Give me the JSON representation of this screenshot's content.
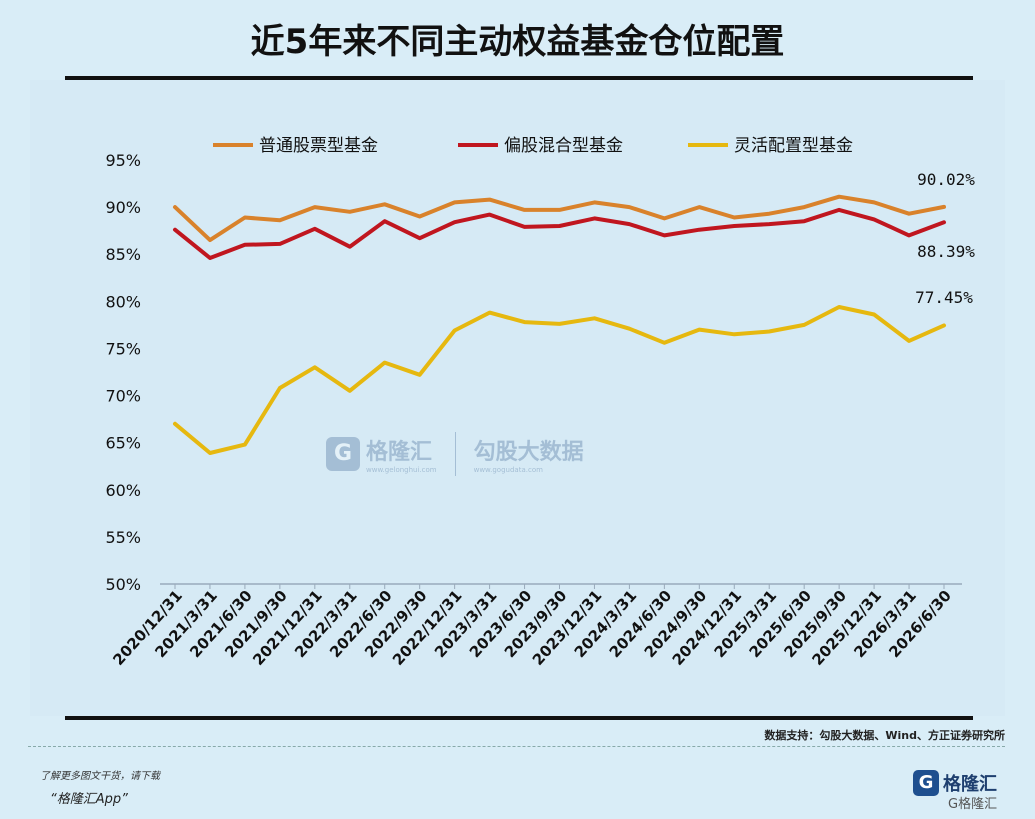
{
  "title": "近5年来不同主动权益基金仓位配置",
  "source": "数据支持：勾股大数据、Wind、方正证券研究所",
  "promo_line1": "了解更多图文干货，请下载",
  "promo_line2": "“格隆汇App”",
  "brand": {
    "name": "格隆汇",
    "footer_mark": "G格隆汇"
  },
  "watermark": {
    "left_name": "格隆汇",
    "left_url": "www.gelonghui.com",
    "right_name": "勾股大数据",
    "right_url": "www.gogudata.com"
  },
  "colors": {
    "series1": "#d9822b",
    "series2": "#c0161f",
    "series3": "#e6b80f",
    "background": "#d9edf7"
  },
  "chart_data": {
    "type": "line",
    "title": "近5年来不同主动权益基金仓位配置",
    "ylim": [
      50,
      95
    ],
    "y_ticks": [
      "50%",
      "55%",
      "60%",
      "65%",
      "70%",
      "75%",
      "80%",
      "85%",
      "90%",
      "95%"
    ],
    "y_tick_values": [
      50,
      55,
      60,
      65,
      70,
      75,
      80,
      85,
      90,
      95
    ],
    "categories": [
      "2020/12/31",
      "2021/3/31",
      "2021/6/30",
      "2021/9/30",
      "2021/12/31",
      "2022/3/31",
      "2022/6/30",
      "2022/9/30",
      "2022/12/31",
      "2023/3/31",
      "2023/6/30",
      "2023/9/30",
      "2023/12/31",
      "2024/3/31",
      "2024/6/30",
      "2024/9/30",
      "2024/12/31",
      "2025/3/31",
      "2025/6/30",
      "2025/9/30",
      "2025/12/31",
      "2026/3/31",
      "2026/6/30"
    ],
    "legend_position": "top",
    "series": [
      {
        "name": "普通股票型基金",
        "values": [
          90.0,
          86.5,
          88.9,
          88.6,
          90.0,
          89.5,
          90.3,
          89.0,
          90.5,
          90.8,
          89.7,
          89.7,
          90.5,
          90.0,
          88.8,
          90.0,
          88.9,
          89.3,
          90.0,
          91.1,
          90.5,
          89.3,
          90.02
        ],
        "end_label": "90.02%"
      },
      {
        "name": "偏股混合型基金",
        "values": [
          87.6,
          84.6,
          86.0,
          86.1,
          87.7,
          85.8,
          88.5,
          86.7,
          88.4,
          89.2,
          87.9,
          88.0,
          88.8,
          88.2,
          87.0,
          87.6,
          88.0,
          88.2,
          88.5,
          89.7,
          88.7,
          87.0,
          88.39
        ],
        "end_label": "88.39%"
      },
      {
        "name": "灵活配置型基金",
        "values": [
          67.0,
          63.9,
          64.8,
          70.8,
          73.0,
          70.5,
          73.5,
          72.2,
          76.9,
          78.8,
          77.8,
          77.6,
          78.2,
          77.1,
          75.6,
          77.0,
          76.5,
          76.8,
          77.5,
          79.4,
          78.6,
          75.8,
          77.45
        ],
        "end_label": "77.45%"
      }
    ]
  }
}
